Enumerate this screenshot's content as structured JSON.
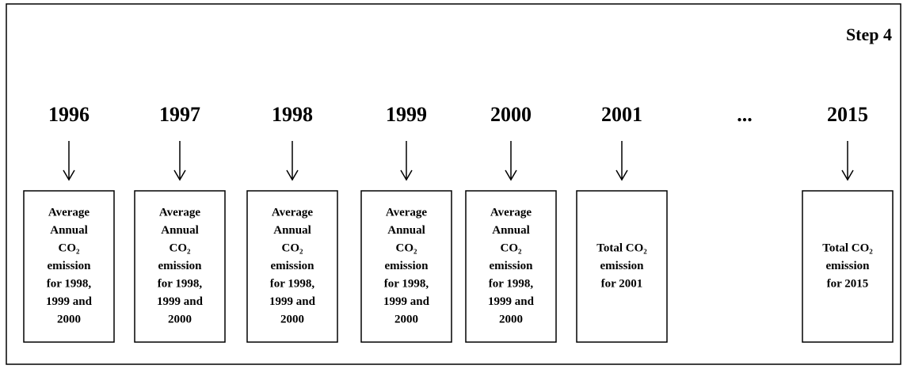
{
  "step": "Step 4",
  "columns": [
    {
      "year": "1996",
      "box": [
        "Average",
        "Annual",
        "CO₂",
        "emission",
        "for 1998,",
        "1999 and",
        "2000"
      ]
    },
    {
      "year": "1997",
      "box": [
        "Average",
        "Annual",
        "CO₂",
        "emission",
        "for 1998,",
        "1999 and",
        "2000"
      ]
    },
    {
      "year": "1998",
      "box": [
        "Average",
        "Annual",
        "CO₂",
        "emission",
        "for 1998,",
        "1999 and",
        "2000"
      ]
    },
    {
      "year": "1999",
      "box": [
        "Average",
        "Annual",
        "CO₂",
        "emission",
        "for 1998,",
        "1999 and",
        "2000"
      ]
    },
    {
      "year": "2000",
      "box": [
        "Average",
        "Annual",
        "CO₂",
        "emission",
        "for 1998,",
        "1999 and",
        "2000"
      ]
    },
    {
      "year": "2001",
      "box": [
        "Total CO₂",
        "emission",
        "for 2001"
      ]
    },
    {
      "year": "..."
    },
    {
      "year": "2015",
      "box": [
        "Total CO₂",
        "emission",
        "for 2015"
      ]
    }
  ]
}
